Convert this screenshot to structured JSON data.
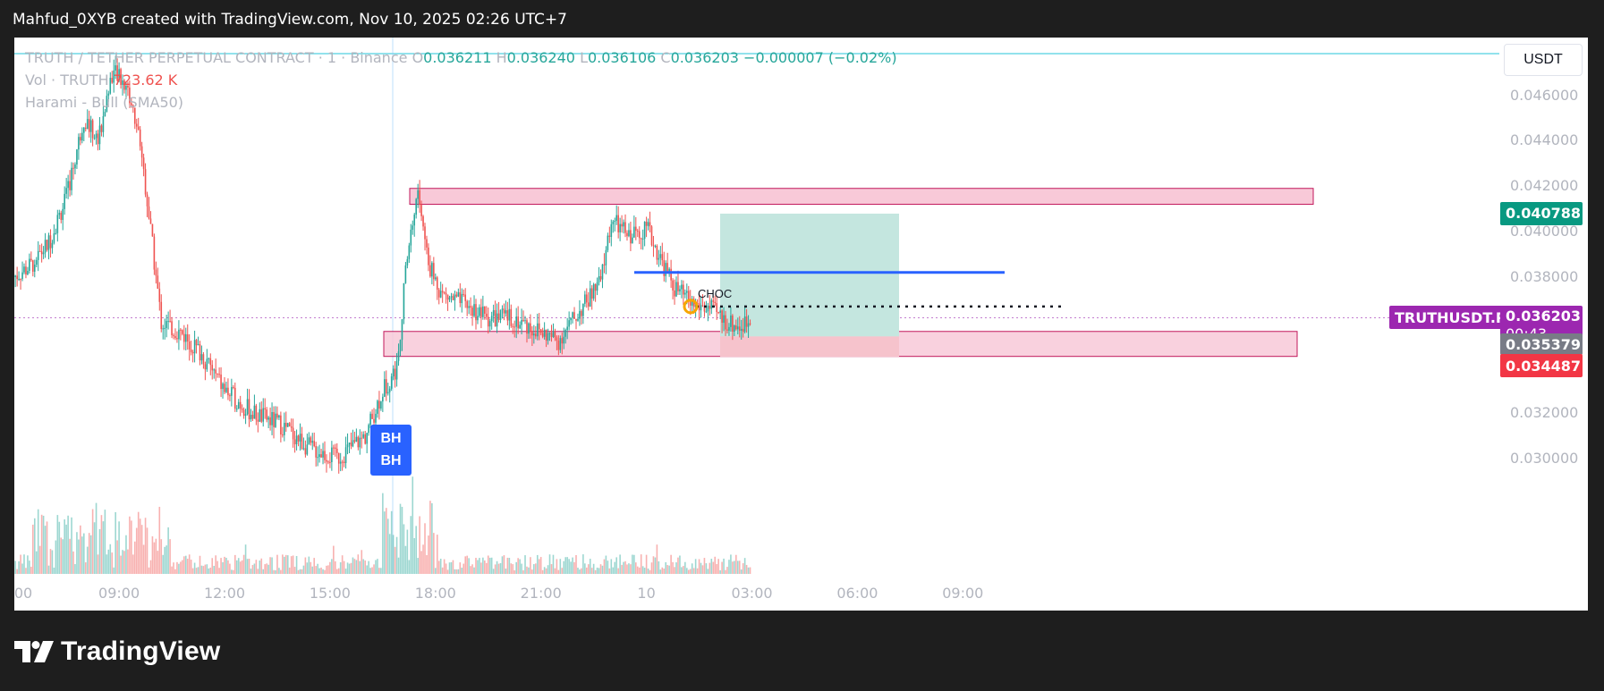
{
  "caption": "Mahfud_0XYB created with TradingView.com, Nov 10, 2025 02:26 UTC+7",
  "legend": {
    "symbol_line": "TRUTH / TETHER PERPETUAL CONTRACT · 1 · Binance",
    "o_label": "O",
    "o": "0.036211",
    "h_label": "H",
    "h": "0.036240",
    "l_label": "L",
    "l": "0.036106",
    "c_label": "C",
    "c": "0.036203",
    "change": "−0.000007 (−0.02%)",
    "vol_label": "Vol · TRUTH",
    "vol_value": "723.62 K",
    "indicator": "Harami - Bull (SMA50)"
  },
  "currency_button": "USDT",
  "price_axis": [
    "0.046000",
    "0.044000",
    "0.042000",
    "0.040000",
    "0.038000",
    "0.032000",
    "0.030000"
  ],
  "time_axis": [
    "00",
    "09:00",
    "12:00",
    "15:00",
    "18:00",
    "21:00",
    "10",
    "03:00",
    "06:00",
    "09:00"
  ],
  "badges": {
    "take_profit": "0.040788",
    "symbol_name": "TRUTHUSDT.P",
    "last_price": "0.036203",
    "countdown": "00:43",
    "entry": "0.035379",
    "stop_loss": "0.034487"
  },
  "annotations": {
    "choc": "CHOC",
    "bh_top": "BH",
    "bh_bottom": "BH"
  },
  "brand": "TradingView",
  "colors": {
    "up": "#26a69a",
    "down": "#ef5350",
    "zone_fill": "#f8c9d8",
    "zone_stroke": "#c2185b",
    "target_fill": "#c4e6df",
    "stop_fill": "#f6c3cc",
    "bos_line": "#2962ff",
    "symbol_badge": "#9c27b0",
    "tp_badge": "#089981",
    "sl_badge": "#f23645",
    "entry_badge": "#787b86"
  },
  "chart_data": {
    "type": "candlestick",
    "title": "TRUTH / TETHER PERPETUAL CONTRACT · 1 · Binance",
    "xlabel": "",
    "ylabel": "",
    "ylim": [
      0.0285,
      0.0475
    ],
    "x_ticks": [
      "00",
      "09:00",
      "12:00",
      "15:00",
      "18:00",
      "21:00",
      "10",
      "03:00",
      "06:00",
      "09:00"
    ],
    "y_ticks": [
      0.03,
      0.032,
      0.038,
      0.04,
      0.042,
      0.044,
      0.046
    ],
    "price_path_hours": [
      [
        6.0,
        0.038
      ],
      [
        6.5,
        0.0385
      ],
      [
        7.0,
        0.0395
      ],
      [
        7.5,
        0.0415
      ],
      [
        8.0,
        0.045
      ],
      [
        8.4,
        0.044
      ],
      [
        8.8,
        0.047
      ],
      [
        9.2,
        0.0465
      ],
      [
        9.6,
        0.044
      ],
      [
        9.9,
        0.04
      ],
      [
        10.2,
        0.036
      ],
      [
        10.8,
        0.0355
      ],
      [
        11.4,
        0.0345
      ],
      [
        12.0,
        0.033
      ],
      [
        12.8,
        0.032
      ],
      [
        13.6,
        0.0315
      ],
      [
        14.4,
        0.0305
      ],
      [
        15.2,
        0.03
      ],
      [
        16.0,
        0.031
      ],
      [
        16.5,
        0.033
      ],
      [
        16.9,
        0.034
      ],
      [
        17.2,
        0.039
      ],
      [
        17.5,
        0.0418
      ],
      [
        17.8,
        0.0385
      ],
      [
        18.2,
        0.0372
      ],
      [
        18.8,
        0.0368
      ],
      [
        19.5,
        0.0362
      ],
      [
        20.2,
        0.0362
      ],
      [
        20.8,
        0.0357
      ],
      [
        21.5,
        0.0352
      ],
      [
        22.1,
        0.0365
      ],
      [
        22.7,
        0.0378
      ],
      [
        23.0,
        0.0405
      ],
      [
        23.5,
        0.0398
      ],
      [
        24.0,
        0.0402
      ],
      [
        24.4,
        0.0388
      ],
      [
        24.8,
        0.0375
      ],
      [
        25.3,
        0.0368
      ],
      [
        25.8,
        0.0366
      ],
      [
        26.3,
        0.036
      ],
      [
        26.7,
        0.0358
      ],
      [
        27.0,
        0.0362
      ]
    ],
    "supply_zone": [
      0.0412,
      0.0419
    ],
    "demand_zone": [
      0.0345,
      0.0356
    ],
    "bos_level": 0.0382,
    "choc_level": 0.0367,
    "last_price": 0.036203,
    "position": {
      "entry": 0.035379,
      "target": 0.040788,
      "stop": 0.034487
    },
    "legend_position": "top-left"
  }
}
